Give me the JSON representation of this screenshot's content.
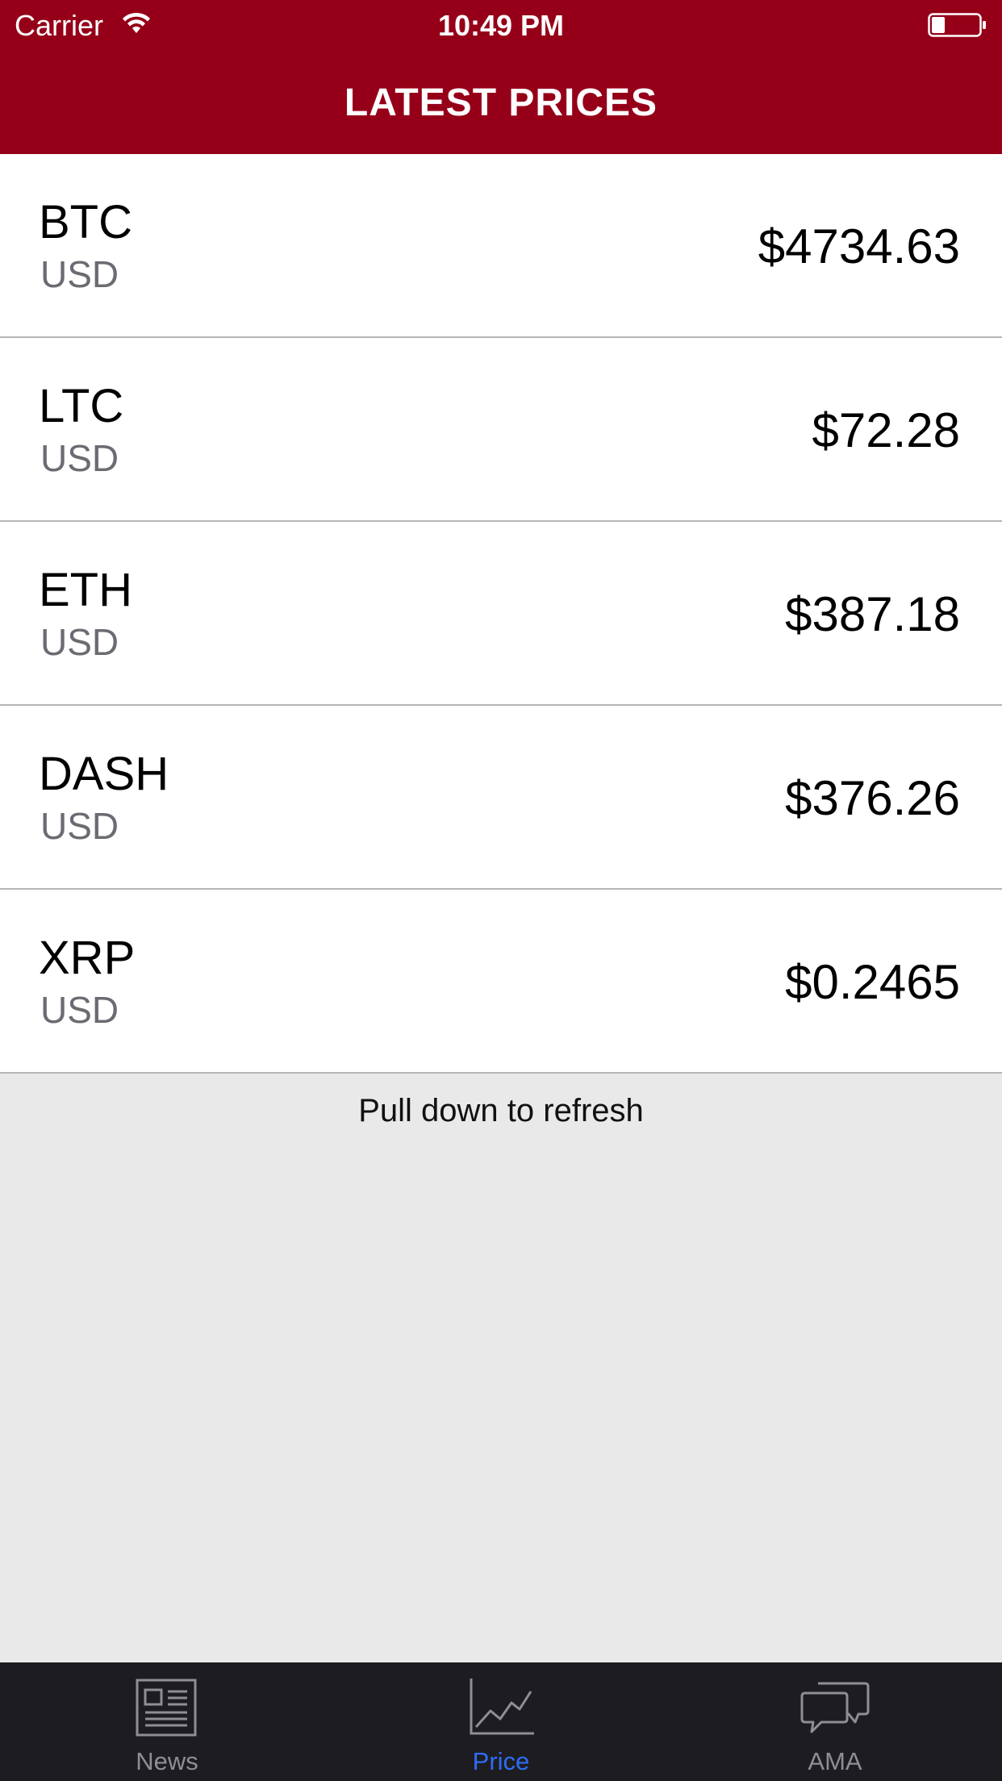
{
  "status_bar": {
    "carrier": "Carrier",
    "time": "10:49 PM"
  },
  "nav": {
    "title": "LATEST PRICES"
  },
  "prices": [
    {
      "symbol": "BTC",
      "currency": "USD",
      "price": "$4734.63"
    },
    {
      "symbol": "LTC",
      "currency": "USD",
      "price": "$72.28"
    },
    {
      "symbol": "ETH",
      "currency": "USD",
      "price": "$387.18"
    },
    {
      "symbol": "DASH",
      "currency": "USD",
      "price": "$376.26"
    },
    {
      "symbol": "XRP",
      "currency": "USD",
      "price": "$0.2465"
    }
  ],
  "refresh_hint": "Pull down to refresh",
  "tabs": [
    {
      "label": "News",
      "icon": "newspaper-icon",
      "active": false
    },
    {
      "label": "Price",
      "icon": "chart-line-icon",
      "active": true
    },
    {
      "label": "AMA",
      "icon": "chat-bubbles-icon",
      "active": false
    }
  ],
  "colors": {
    "header": "#950018",
    "tab_active": "#2f6cf5",
    "tab_inactive": "#8e8e93",
    "tab_bar": "#1d1d21"
  }
}
